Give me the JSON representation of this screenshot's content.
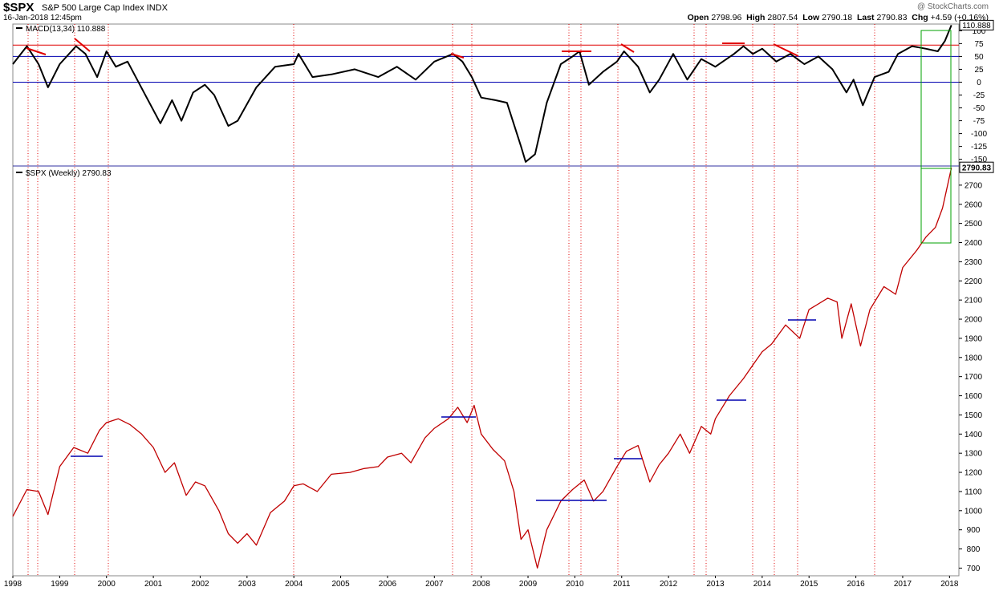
{
  "header": {
    "symbol": "$SPX",
    "description": "S&P 500 Large Cap Index  INDX",
    "datetime": "16-Jan-2018 12:45pm",
    "brand": "@ StockCharts.com",
    "open_label": "Open",
    "open": "2798.96",
    "high_label": "High",
    "high": "2807.54",
    "low_label": "Low",
    "low": "2790.18",
    "last_label": "Last",
    "last": "2790.83",
    "chg_label": "Chg",
    "chg": "+4.59 (+0.16%)"
  },
  "colors": {
    "price_line": "#c00000",
    "macd_line": "#000000",
    "red_ref": "#e00000",
    "blue_ref": "#0000b0",
    "event_line": "#e00000",
    "highlight": "#00a000"
  },
  "chart_data": [
    {
      "type": "line",
      "title": "MACD(13,34) 110.888",
      "last_value_label": "110.888",
      "y_ticks": [
        "100",
        "75",
        "50",
        "25",
        "0",
        "-25",
        "-50",
        "-75",
        "-100",
        "-125",
        "-150"
      ],
      "ylim": [
        -163,
        113
      ],
      "reference_lines": [
        {
          "value": 72,
          "color": "red"
        },
        {
          "value": 50,
          "color": "blue"
        },
        {
          "value": 0,
          "color": "blue"
        }
      ],
      "series": [
        {
          "values": [
            [
              1998.0,
              35
            ],
            [
              1998.3,
              70
            ],
            [
              1998.55,
              35
            ],
            [
              1998.75,
              -10
            ],
            [
              1999.0,
              35
            ],
            [
              1999.35,
              70
            ],
            [
              1999.55,
              55
            ],
            [
              1999.8,
              10
            ],
            [
              2000.0,
              60
            ],
            [
              2000.2,
              30
            ],
            [
              2000.45,
              40
            ],
            [
              2000.8,
              -20
            ],
            [
              2001.15,
              -80
            ],
            [
              2001.4,
              -35
            ],
            [
              2001.6,
              -75
            ],
            [
              2001.85,
              -20
            ],
            [
              2002.1,
              -5
            ],
            [
              2002.3,
              -25
            ],
            [
              2002.6,
              -85
            ],
            [
              2002.8,
              -75
            ],
            [
              2003.2,
              -10
            ],
            [
              2003.6,
              30
            ],
            [
              2004.0,
              35
            ],
            [
              2004.1,
              55
            ],
            [
              2004.4,
              10
            ],
            [
              2004.8,
              15
            ],
            [
              2005.3,
              25
            ],
            [
              2005.8,
              10
            ],
            [
              2006.2,
              30
            ],
            [
              2006.6,
              5
            ],
            [
              2007.0,
              40
            ],
            [
              2007.4,
              55
            ],
            [
              2007.6,
              40
            ],
            [
              2007.8,
              10
            ],
            [
              2008.0,
              -30
            ],
            [
              2008.3,
              -35
            ],
            [
              2008.55,
              -40
            ],
            [
              2008.85,
              -125
            ],
            [
              2008.95,
              -155
            ],
            [
              2009.15,
              -140
            ],
            [
              2009.4,
              -40
            ],
            [
              2009.7,
              35
            ],
            [
              2009.95,
              50
            ],
            [
              2010.1,
              60
            ],
            [
              2010.3,
              -5
            ],
            [
              2010.6,
              20
            ],
            [
              2010.9,
              40
            ],
            [
              2011.05,
              60
            ],
            [
              2011.35,
              30
            ],
            [
              2011.6,
              -20
            ],
            [
              2011.8,
              5
            ],
            [
              2012.1,
              55
            ],
            [
              2012.4,
              5
            ],
            [
              2012.7,
              45
            ],
            [
              2013.0,
              30
            ],
            [
              2013.4,
              55
            ],
            [
              2013.6,
              70
            ],
            [
              2013.8,
              55
            ],
            [
              2014.0,
              65
            ],
            [
              2014.3,
              40
            ],
            [
              2014.6,
              55
            ],
            [
              2014.9,
              35
            ],
            [
              2015.2,
              50
            ],
            [
              2015.5,
              25
            ],
            [
              2015.8,
              -20
            ],
            [
              2015.95,
              5
            ],
            [
              2016.15,
              -45
            ],
            [
              2016.4,
              10
            ],
            [
              2016.7,
              20
            ],
            [
              2016.9,
              55
            ],
            [
              2017.2,
              70
            ],
            [
              2017.5,
              65
            ],
            [
              2017.75,
              60
            ],
            [
              2017.9,
              80
            ],
            [
              2018.04,
              110.888
            ]
          ]
        }
      ]
    },
    {
      "type": "line",
      "title": "$SPX (Weekly) 2790.83",
      "last_value_label": "2790.83",
      "y_ticks": [
        "2700",
        "2600",
        "2500",
        "2400",
        "2300",
        "2200",
        "2100",
        "2000",
        "1900",
        "1800",
        "1700",
        "1600",
        "1500",
        "1400",
        "1300",
        "1200",
        "1100",
        "1000",
        "900",
        "800",
        "700"
      ],
      "ylim": [
        660,
        2800
      ],
      "x_ticks": [
        "1998",
        "1999",
        "2000",
        "2001",
        "2002",
        "2003",
        "2004",
        "2005",
        "2006",
        "2007",
        "2008",
        "2009",
        "2010",
        "2011",
        "2012",
        "2013",
        "2014",
        "2015",
        "2016",
        "2017",
        "2018"
      ],
      "series": [
        {
          "values": [
            [
              1998.0,
              970
            ],
            [
              1998.3,
              1110
            ],
            [
              1998.55,
              1100
            ],
            [
              1998.75,
              980
            ],
            [
              1999.0,
              1230
            ],
            [
              1999.3,
              1330
            ],
            [
              1999.6,
              1300
            ],
            [
              1999.85,
              1420
            ],
            [
              2000.0,
              1460
            ],
            [
              2000.25,
              1480
            ],
            [
              2000.5,
              1450
            ],
            [
              2000.75,
              1400
            ],
            [
              2001.0,
              1330
            ],
            [
              2001.25,
              1200
            ],
            [
              2001.45,
              1250
            ],
            [
              2001.7,
              1080
            ],
            [
              2001.9,
              1150
            ],
            [
              2002.1,
              1130
            ],
            [
              2002.4,
              1000
            ],
            [
              2002.6,
              880
            ],
            [
              2002.8,
              830
            ],
            [
              2003.0,
              880
            ],
            [
              2003.2,
              820
            ],
            [
              2003.5,
              990
            ],
            [
              2003.8,
              1050
            ],
            [
              2004.0,
              1130
            ],
            [
              2004.2,
              1140
            ],
            [
              2004.5,
              1100
            ],
            [
              2004.8,
              1190
            ],
            [
              2005.2,
              1200
            ],
            [
              2005.5,
              1220
            ],
            [
              2005.8,
              1230
            ],
            [
              2006.0,
              1280
            ],
            [
              2006.3,
              1300
            ],
            [
              2006.5,
              1250
            ],
            [
              2006.8,
              1380
            ],
            [
              2007.0,
              1430
            ],
            [
              2007.3,
              1480
            ],
            [
              2007.5,
              1540
            ],
            [
              2007.7,
              1460
            ],
            [
              2007.85,
              1550
            ],
            [
              2008.0,
              1400
            ],
            [
              2008.25,
              1320
            ],
            [
              2008.5,
              1260
            ],
            [
              2008.7,
              1100
            ],
            [
              2008.85,
              850
            ],
            [
              2009.0,
              900
            ],
            [
              2009.2,
              700
            ],
            [
              2009.4,
              900
            ],
            [
              2009.7,
              1050
            ],
            [
              2009.95,
              1110
            ],
            [
              2010.2,
              1160
            ],
            [
              2010.4,
              1050
            ],
            [
              2010.6,
              1100
            ],
            [
              2010.9,
              1230
            ],
            [
              2011.1,
              1310
            ],
            [
              2011.35,
              1340
            ],
            [
              2011.6,
              1150
            ],
            [
              2011.8,
              1240
            ],
            [
              2012.0,
              1300
            ],
            [
              2012.25,
              1400
            ],
            [
              2012.45,
              1300
            ],
            [
              2012.7,
              1440
            ],
            [
              2012.9,
              1400
            ],
            [
              2013.0,
              1480
            ],
            [
              2013.3,
              1600
            ],
            [
              2013.6,
              1690
            ],
            [
              2013.8,
              1760
            ],
            [
              2014.0,
              1830
            ],
            [
              2014.2,
              1870
            ],
            [
              2014.5,
              1970
            ],
            [
              2014.8,
              1900
            ],
            [
              2015.0,
              2050
            ],
            [
              2015.4,
              2110
            ],
            [
              2015.6,
              2090
            ],
            [
              2015.7,
              1900
            ],
            [
              2015.9,
              2080
            ],
            [
              2016.1,
              1860
            ],
            [
              2016.3,
              2050
            ],
            [
              2016.6,
              2170
            ],
            [
              2016.85,
              2130
            ],
            [
              2017.0,
              2270
            ],
            [
              2017.3,
              2360
            ],
            [
              2017.5,
              2430
            ],
            [
              2017.7,
              2480
            ],
            [
              2017.85,
              2580
            ],
            [
              2017.95,
              2690
            ],
            [
              2018.04,
              2790.83
            ]
          ]
        }
      ]
    }
  ]
}
